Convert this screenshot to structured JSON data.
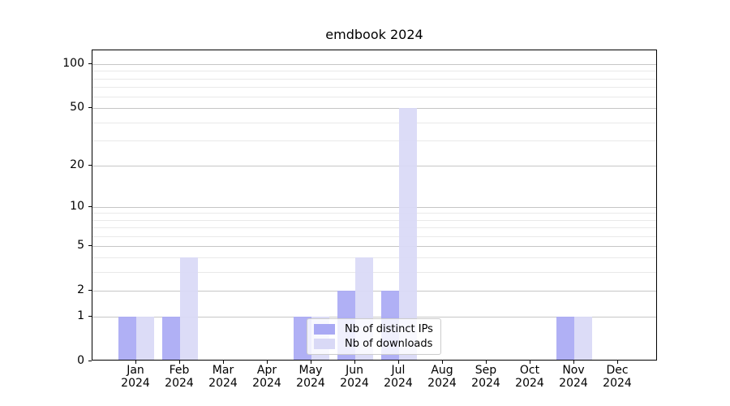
{
  "figure": {
    "title": "emdbook 2024",
    "background": "#ffffff"
  },
  "chart_data": {
    "type": "bar",
    "title": "emdbook 2024",
    "categories": [
      "Jan 2024",
      "Feb 2024",
      "Mar 2024",
      "Apr 2024",
      "May 2024",
      "Jun 2024",
      "Jul 2024",
      "Aug 2024",
      "Sep 2024",
      "Oct 2024",
      "Nov 2024",
      "Dec 2024"
    ],
    "x_tick_month_labels": [
      "Jan",
      "Feb",
      "Mar",
      "Apr",
      "May",
      "Jun",
      "Jul",
      "Aug",
      "Sep",
      "Oct",
      "Nov",
      "Dec"
    ],
    "x_tick_year_label": "2024",
    "series": [
      {
        "name": "Nb of distinct IPs",
        "color": "#a9a9f4",
        "values": [
          1,
          1,
          0,
          0,
          1,
          2,
          2,
          0,
          0,
          0,
          1,
          0
        ]
      },
      {
        "name": "Nb of downloads",
        "color": "#d9d9f6",
        "values": [
          1,
          4,
          0,
          0,
          1,
          4,
          50,
          0,
          0,
          0,
          1,
          0
        ]
      }
    ],
    "y_scale": "log1p",
    "y_axis": {
      "tick_values": [
        0,
        1,
        2,
        5,
        10,
        20,
        50,
        100
      ],
      "minor_gridline_values": [
        3,
        4,
        6,
        7,
        8,
        9,
        30,
        40,
        60,
        70,
        80,
        90
      ],
      "lim": [
        0,
        126
      ]
    },
    "grid": true,
    "legend": {
      "position": "lower center",
      "entries": [
        "Nb of distinct IPs",
        "Nb of downloads"
      ]
    },
    "colors": {
      "major_grid": "#c6c6c6",
      "minor_grid": "#e9e9e9",
      "axis": "#000000",
      "tick_label": "#000000"
    }
  }
}
